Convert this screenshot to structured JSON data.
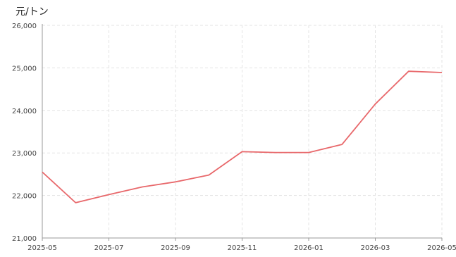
{
  "chart_data": {
    "type": "line",
    "unit_label": "元/トン",
    "title": "",
    "xlabel": "",
    "ylabel": "",
    "x_ticks": [
      "2025-05",
      "2025-07",
      "2025-09",
      "2025-11",
      "2026-01",
      "2026-03",
      "2026-05"
    ],
    "y_ticks": [
      "21,000",
      "22,000",
      "23,000",
      "24,000",
      "25,000",
      "26,000"
    ],
    "ylim": [
      21000,
      26000
    ],
    "grid": true,
    "line_color": "#e8686b",
    "series": [
      {
        "x": [
          "2025-05",
          "2025-06",
          "2025-07",
          "2025-08",
          "2025-09",
          "2025-10",
          "2025-11",
          "2025-12",
          "2026-01",
          "2026-02",
          "2026-03",
          "2026-04",
          "2026-05"
        ],
        "values": [
          22550,
          21830,
          22020,
          22200,
          22320,
          22480,
          23030,
          23010,
          23010,
          23200,
          24150,
          24920,
          24890
        ]
      }
    ]
  }
}
